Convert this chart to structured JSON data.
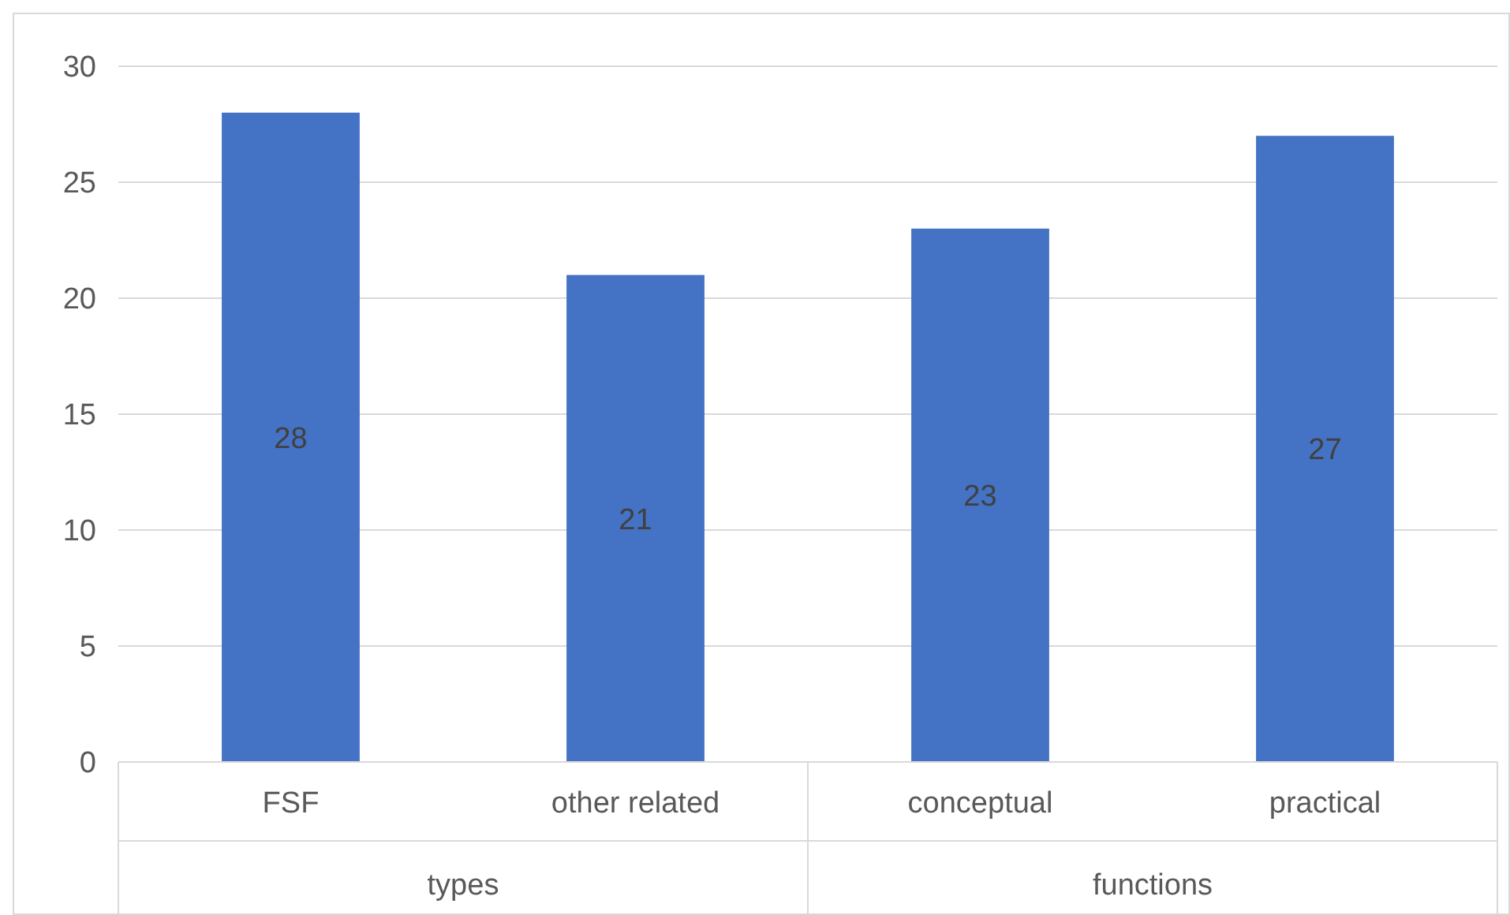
{
  "chart_data": {
    "type": "bar",
    "categories": [
      "FSF",
      "other related",
      "conceptual",
      "practical"
    ],
    "values": [
      28,
      21,
      23,
      27
    ],
    "color": "#4472c4",
    "ylim": [
      0,
      30
    ],
    "yticks": [
      0,
      5,
      10,
      15,
      20,
      25,
      30
    ],
    "grid": true,
    "data_labels": true,
    "annotations": [
      "types",
      "functions"
    ]
  }
}
